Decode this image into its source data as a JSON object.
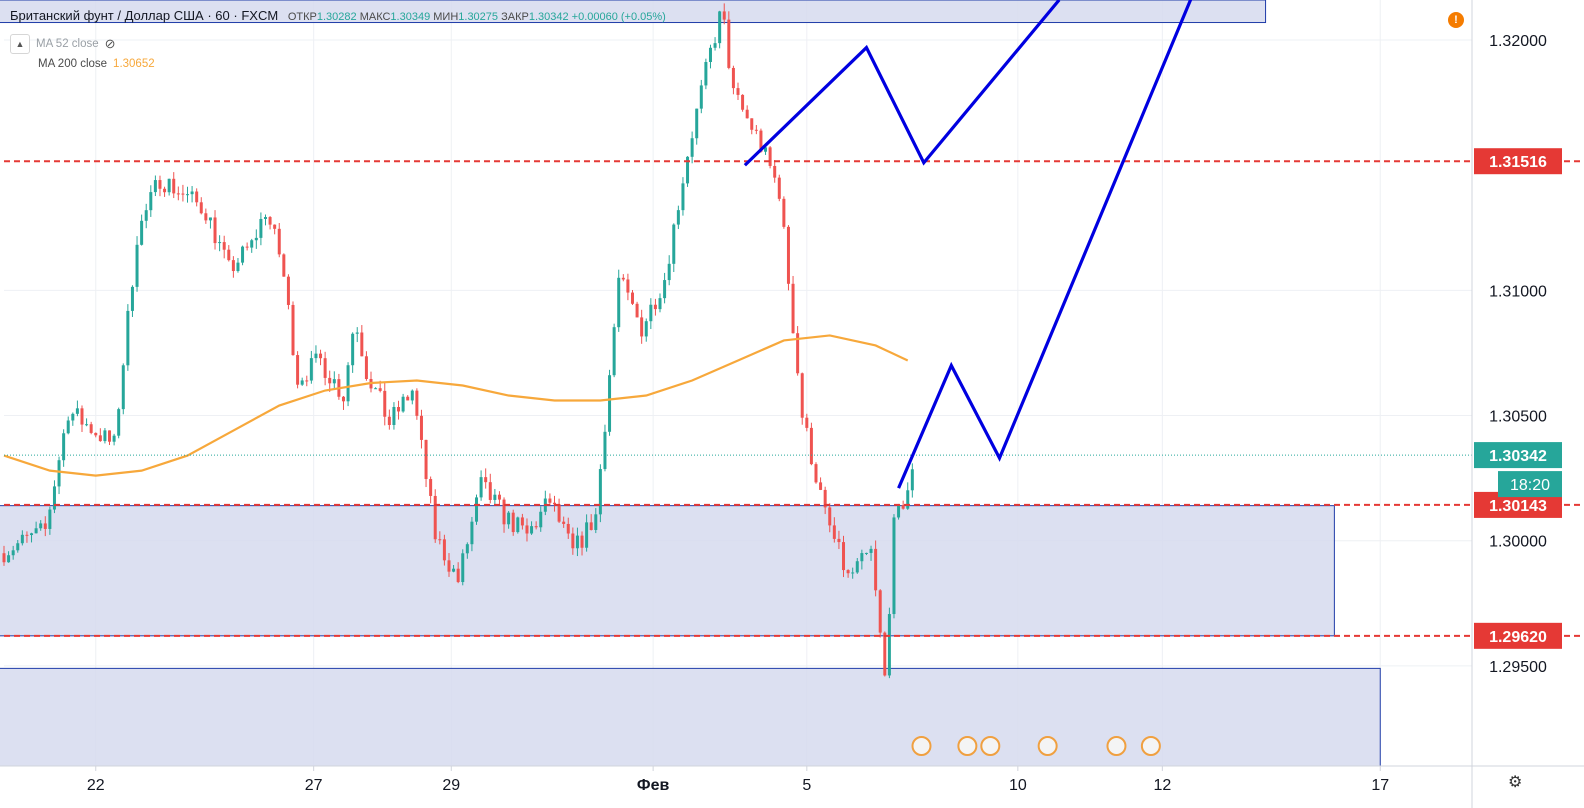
{
  "legend": {
    "symbol": "Британский фунт / Доллар США",
    "interval": "60",
    "source": "FXCM",
    "open_label": "ОТКР",
    "open": "1.30282",
    "high_label": "МАКС",
    "high": "1.30349",
    "low_label": "МИН",
    "low": "1.30275",
    "close_label": "ЗАКР",
    "close": "1.30342",
    "change": "+0.00060 (+0.05%)"
  },
  "indicators": {
    "ma52_label": "MA 52 close",
    "ma200_label": "MA 200 close",
    "ma200_value": "1.30652"
  },
  "colors": {
    "up": "#26a69a",
    "down": "#ef5350",
    "ma200": "#f7a83b",
    "forecast": "#0000e0",
    "level": "#e53935",
    "zone_fill": "#d6dbef",
    "zone_stroke": "#1e3ba8",
    "price_badge": "#26a69a",
    "level_badge": "#e53935"
  },
  "chart_data": {
    "type": "candlestick",
    "title": "Британский фунт / Доллар США, 60, FXCM",
    "x_ticks": [
      "22",
      "27",
      "29",
      "Фев",
      "5",
      "10",
      "12",
      "17"
    ],
    "y_ticks": [
      "1.32000",
      "1.31000",
      "1.30500",
      "1.30000",
      "1.29500"
    ],
    "ylim": [
      1.291,
      1.3216
    ],
    "last_price": "1.30342",
    "countdown": "18:20",
    "levels": [
      "1.31516",
      "1.30143",
      "1.29620"
    ],
    "ma200_path": [
      [
        0,
        1.3034
      ],
      [
        2,
        1.3028
      ],
      [
        4,
        1.3026
      ],
      [
        6,
        1.3028
      ],
      [
        8,
        1.3034
      ],
      [
        10,
        1.3044
      ],
      [
        12,
        1.3054
      ],
      [
        14,
        1.306
      ],
      [
        16,
        1.3063
      ],
      [
        18,
        1.3064
      ],
      [
        20,
        1.3062
      ],
      [
        22,
        1.3058
      ],
      [
        24,
        1.3056
      ],
      [
        26,
        1.3056
      ],
      [
        28,
        1.3058
      ],
      [
        30,
        1.3064
      ],
      [
        32,
        1.3072
      ],
      [
        34,
        1.308
      ],
      [
        36,
        1.3082
      ],
      [
        38,
        1.3078
      ],
      [
        39.4,
        1.3072
      ]
    ],
    "zones": [
      {
        "from_x": -2,
        "to_x": 58,
        "top": 1.3014,
        "bottom": 1.2962
      },
      {
        "from_x": -2,
        "to_x": 60,
        "top": 1.2949,
        "bottom": 1.291
      },
      {
        "from_x": -2,
        "to_x": 55,
        "top": 1.3216,
        "bottom": 1.3207
      }
    ],
    "forecast_lines": [
      [
        [
          32.3,
          1.315
        ],
        [
          37.6,
          1.3197
        ],
        [
          40.1,
          1.3151
        ],
        [
          46,
          1.3216
        ]
      ],
      [
        [
          39,
          1.3021
        ],
        [
          41.3,
          1.307
        ],
        [
          43.4,
          1.3033
        ],
        [
          52,
          1.3222
        ]
      ]
    ],
    "event_markers_x": [
      40,
      42,
      43,
      45.5,
      48.5,
      50
    ]
  }
}
